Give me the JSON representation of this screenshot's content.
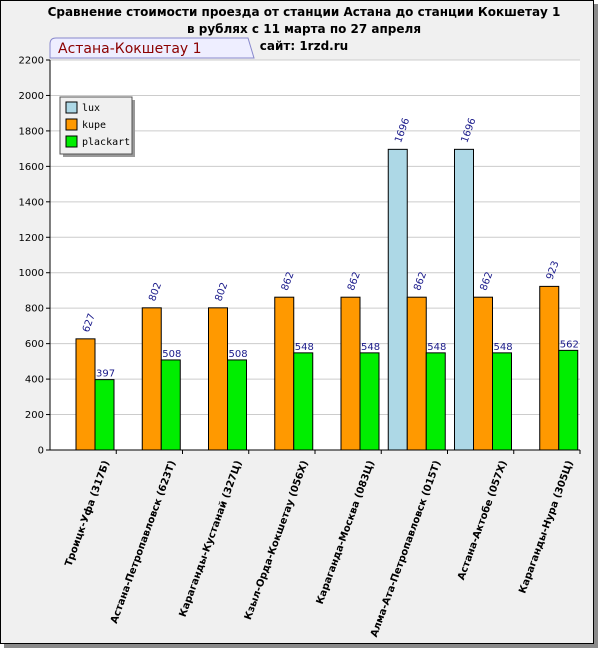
{
  "chart_data": {
    "type": "bar",
    "title_lines": [
      "Сравнение стоимости проезда от станции Астана до станции Кокшетау 1",
      "в рублях с 11 марта по 27 апреля",
      "сайт: 1rzd.ru"
    ],
    "tab_label": "Астана-Кокшетау 1",
    "categories": [
      "Троицк-Уфа (317Б)",
      "Астана-Петропавловск (623Т)",
      "Караганды-Кустанай (327Ц)",
      "Кзыл-Орда-Кокшетау (056Х)",
      "Караганда-Москва (083Ц)",
      "Алма-Ата-Петропавловск (015Т)",
      "Астана-Актобе (057Х)",
      "Караганды-Нура (305Ц)"
    ],
    "series": [
      {
        "name": "lux",
        "color": "#add8e6",
        "values": [
          null,
          null,
          null,
          null,
          null,
          1696,
          1696,
          null
        ]
      },
      {
        "name": "kupe",
        "color": "#ff9900",
        "values": [
          627,
          802,
          802,
          862,
          862,
          862,
          862,
          923
        ]
      },
      {
        "name": "plackart",
        "color": "#00ee00",
        "values": [
          397,
          508,
          508,
          548,
          548,
          548,
          548,
          562
        ]
      }
    ],
    "ylim": [
      0,
      2200
    ],
    "yticks": [
      0,
      200,
      400,
      600,
      800,
      1000,
      1200,
      1400,
      1600,
      1800,
      2000,
      2200
    ],
    "grid": true,
    "legend_position": "top-left"
  }
}
